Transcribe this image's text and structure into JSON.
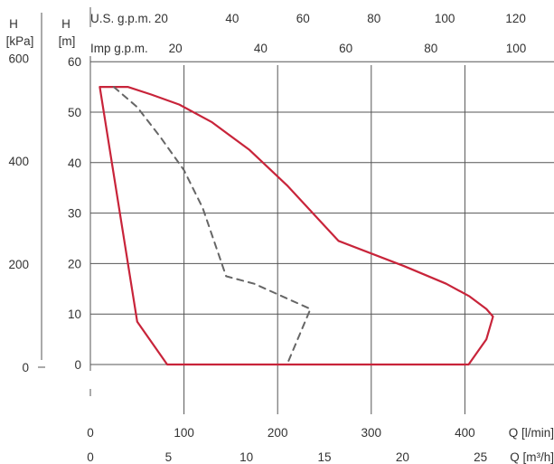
{
  "chart_data": {
    "type": "line",
    "title": "",
    "x_axis": {
      "label": "Q [l/min]",
      "min": 0,
      "max": 490,
      "ticks": [
        0,
        100,
        200,
        300,
        400
      ]
    },
    "x_axis_m3h": {
      "label": "Q [m³/h]",
      "ticks": [
        0,
        5,
        10,
        15,
        20,
        25
      ]
    },
    "x_axis_us_gpm": {
      "label": "U.S. g.p.m.",
      "ticks": [
        20,
        40,
        60,
        80,
        100,
        120
      ]
    },
    "x_axis_imp_gpm": {
      "label": "Imp g.p.m.",
      "ticks": [
        20,
        40,
        60,
        80,
        100
      ]
    },
    "y_axis": {
      "label_top": "H",
      "label_unit": "[m]",
      "min": -10,
      "max": 60,
      "ticks": [
        0,
        10,
        20,
        30,
        40,
        50,
        60
      ]
    },
    "y_axis_kpa": {
      "label_top": "H",
      "label_unit": "[kPa]",
      "ticks": [
        0,
        200,
        400,
        600
      ]
    },
    "grid": true,
    "series": [
      {
        "style": "solid",
        "color": "#c8243a",
        "x": [
          10,
          40,
          65,
          95,
          130,
          170,
          210,
          265,
          335,
          380,
          405,
          423,
          430,
          423,
          404,
          82,
          50,
          10
        ],
        "y": [
          55,
          55,
          53.5,
          51.5,
          48,
          42.5,
          35.5,
          24.5,
          19.5,
          16,
          13.5,
          11,
          9.5,
          5,
          0,
          0,
          8.5,
          55
        ]
      },
      {
        "style": "dashed",
        "color": "#666666",
        "x": [
          25,
          50,
          75,
          100,
          120,
          145,
          175,
          205,
          235,
          210
        ],
        "y": [
          55,
          51,
          45,
          38.5,
          31,
          17.5,
          16,
          13.5,
          11,
          0
        ]
      }
    ]
  }
}
